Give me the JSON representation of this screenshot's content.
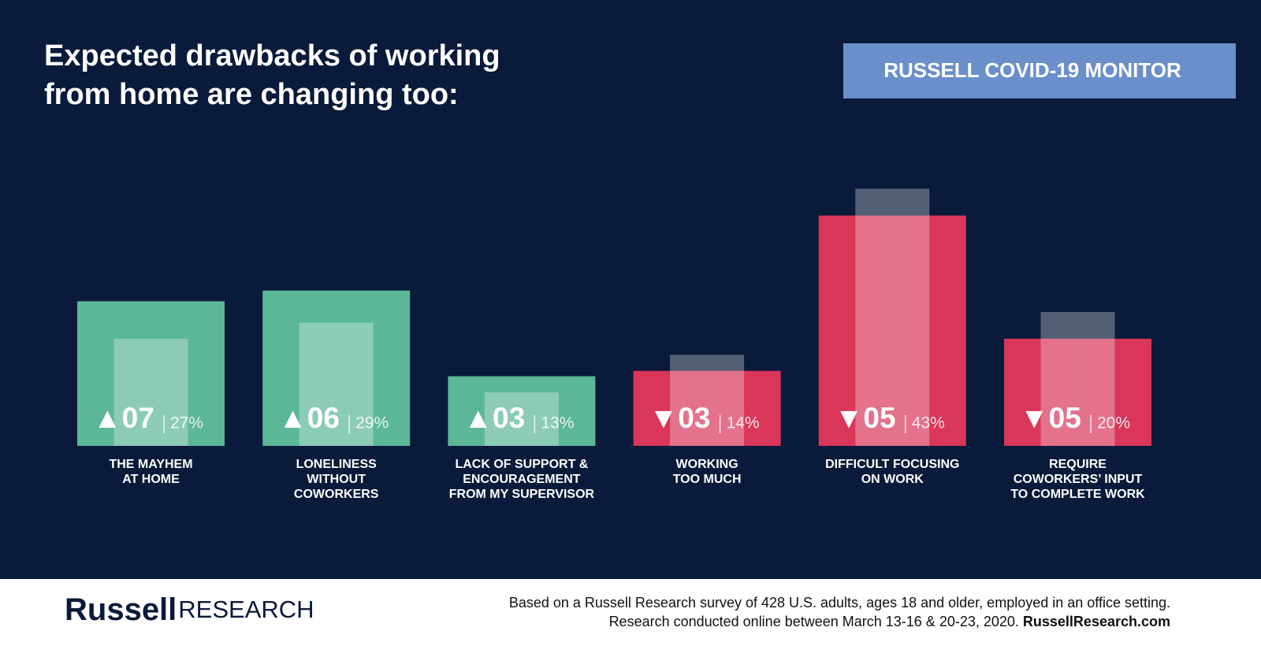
{
  "chart_data": {
    "type": "bar",
    "title": [
      "Expected drawbacks of working",
      "from home are changing too:"
    ],
    "badge": "RUSSELL COVID-19 MONITOR",
    "categories": [
      [
        "THE MAYHEM",
        "AT HOME"
      ],
      [
        "LONELINESS",
        "WITHOUT",
        "COWORKERS"
      ],
      [
        "LACK OF SUPPORT &",
        "ENCOURAGEMENT",
        "FROM MY SUPERVISOR"
      ],
      [
        "WORKING",
        "TOO MUCH"
      ],
      [
        "DIFFICULT  FOCUSING",
        "ON WORK"
      ],
      [
        "REQUIRE",
        "COWORKERS’ INPUT",
        "TO COMPLETE WORK"
      ]
    ],
    "values": [
      27,
      29,
      13,
      14,
      43,
      20
    ],
    "value_labels": [
      "27%",
      "29%",
      "13%",
      "14%",
      "43%",
      "20%"
    ],
    "previous_values": [
      20,
      23,
      10,
      17,
      48,
      25
    ],
    "changes": [
      7,
      6,
      3,
      -3,
      -5,
      -5
    ],
    "change_labels": [
      "▲07",
      "▲06",
      "▲03",
      "▼03",
      "▼05",
      "▼05"
    ],
    "colors": [
      "#5bb795",
      "#5bb795",
      "#5bb795",
      "#d9365a",
      "#d9365a",
      "#d9365a"
    ],
    "ylim": [
      0,
      50
    ],
    "footer": {
      "logo_bold": "Russell",
      "logo_light": "RESEARCH",
      "note": [
        "Based on a Russell Research survey of 428 U.S. adults, ages 18 and older, employed in an office setting.",
        "Research conducted online between March 13-16 & 20-23, 2020."
      ],
      "link": "RussellResearch.com"
    }
  }
}
